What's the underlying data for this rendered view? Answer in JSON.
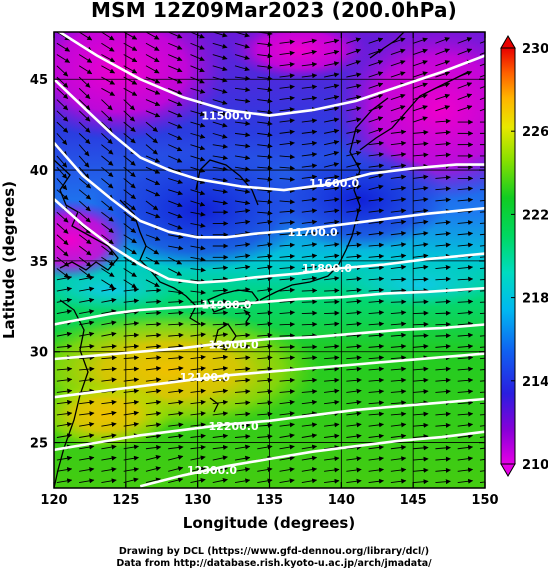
{
  "title": "MSM 12Z09Mar2023 (200.0hPa)",
  "credit": {
    "line1": "Drawing by DCL (https://www.gfd-dennou.org/library/dcl/)",
    "line2": "Data from http://database.rish.kyoto-u.ac.jp/arch/jmadata/"
  },
  "axes": {
    "x_title": "Longitude (degrees)",
    "y_title": "Latitude  (degrees)",
    "x_range": [
      120,
      150
    ],
    "y_range": [
      22.5,
      47.6
    ],
    "x_ticks": [
      120,
      125,
      130,
      135,
      140,
      145,
      150
    ],
    "y_ticks": [
      25,
      30,
      35,
      40,
      45
    ],
    "x_tick_labels": [
      "120",
      "125",
      "130",
      "135",
      "140",
      "145",
      "150"
    ],
    "y_tick_labels": [
      "25",
      "30",
      "35",
      "40",
      "45"
    ]
  },
  "colorbar": {
    "range": [
      210,
      230
    ],
    "tick_labels": [
      "210",
      "214",
      "218",
      "222",
      "226",
      "230"
    ],
    "colors": [
      "#e600e6",
      "#7000d8",
      "#1a1ae0",
      "#0a70f0",
      "#00d0e0",
      "#00d890",
      "#00cc33",
      "#66dd00",
      "#d8e800",
      "#ffcc00",
      "#ff8800",
      "#ff3300",
      "#e80000"
    ]
  },
  "contours": [
    {
      "label": "11500.0",
      "value": 11500,
      "points": [
        [
          120,
          47.8
        ],
        [
          123,
          46.3
        ],
        [
          126,
          45.0
        ],
        [
          129,
          44.0
        ],
        [
          132,
          43.3
        ],
        [
          135,
          43.0
        ],
        [
          138,
          43.3
        ],
        [
          141,
          43.8
        ],
        [
          144,
          44.6
        ],
        [
          147,
          45.4
        ],
        [
          150,
          46.3
        ]
      ]
    },
    {
      "label": "11600.0",
      "value": 11600,
      "points": [
        [
          120,
          45.0
        ],
        [
          122,
          43.5
        ],
        [
          124,
          42.0
        ],
        [
          126,
          40.7
        ],
        [
          128,
          40.0
        ],
        [
          130,
          39.5
        ],
        [
          133,
          39.1
        ],
        [
          136,
          38.9
        ],
        [
          139,
          39.2
        ],
        [
          142,
          39.8
        ],
        [
          145,
          40.1
        ],
        [
          148,
          40.3
        ],
        [
          150,
          40.3
        ]
      ]
    },
    {
      "label": "11700.0",
      "value": 11700,
      "points": [
        [
          120,
          41.5
        ],
        [
          122,
          39.7
        ],
        [
          124,
          38.4
        ],
        [
          126,
          37.2
        ],
        [
          128,
          36.6
        ],
        [
          130,
          36.3
        ],
        [
          132,
          36.3
        ],
        [
          134,
          36.5
        ],
        [
          137,
          36.7
        ],
        [
          140,
          37.0
        ],
        [
          143,
          37.3
        ],
        [
          146,
          37.6
        ],
        [
          150,
          37.9
        ]
      ]
    },
    {
      "label": "11800.0",
      "value": 11800,
      "points": [
        [
          120,
          38.4
        ],
        [
          122,
          37.0
        ],
        [
          124,
          35.8
        ],
        [
          126,
          34.8
        ],
        [
          128,
          34.0
        ],
        [
          130,
          33.8
        ],
        [
          132,
          33.9
        ],
        [
          134,
          34.1
        ],
        [
          137,
          34.3
        ],
        [
          140,
          34.6
        ],
        [
          143,
          34.8
        ],
        [
          146,
          35.1
        ],
        [
          150,
          35.4
        ]
      ]
    },
    {
      "label": "11900.0",
      "value": 11900,
      "points": [
        [
          120,
          31.5
        ],
        [
          122,
          31.8
        ],
        [
          124,
          32.1
        ],
        [
          126,
          32.3
        ],
        [
          128,
          32.4
        ],
        [
          130,
          32.5
        ],
        [
          132,
          32.6
        ],
        [
          134,
          32.7
        ],
        [
          137,
          32.9
        ],
        [
          140,
          33.0
        ],
        [
          143,
          33.2
        ],
        [
          146,
          33.3
        ],
        [
          150,
          33.5
        ]
      ]
    },
    {
      "label": "12000.0",
      "value": 12000,
      "points": [
        [
          120,
          29.6
        ],
        [
          123,
          29.8
        ],
        [
          126,
          30.0
        ],
        [
          129,
          30.2
        ],
        [
          132,
          30.5
        ],
        [
          135,
          30.7
        ],
        [
          138,
          30.8
        ],
        [
          141,
          31.0
        ],
        [
          144,
          31.2
        ],
        [
          147,
          31.3
        ],
        [
          150,
          31.5
        ]
      ]
    },
    {
      "label": "12100.0",
      "value": 12100,
      "points": [
        [
          120,
          27.5
        ],
        [
          123,
          27.8
        ],
        [
          126,
          28.1
        ],
        [
          129,
          28.4
        ],
        [
          132,
          28.7
        ],
        [
          135,
          28.9
        ],
        [
          138,
          29.1
        ],
        [
          141,
          29.3
        ],
        [
          144,
          29.5
        ],
        [
          147,
          29.7
        ],
        [
          150,
          29.9
        ]
      ]
    },
    {
      "label": "12200.0",
      "value": 12200,
      "points": [
        [
          120,
          24.6
        ],
        [
          123,
          25.0
        ],
        [
          126,
          25.4
        ],
        [
          129,
          25.7
        ],
        [
          132,
          26.0
        ],
        [
          135,
          26.2
        ],
        [
          138,
          26.5
        ],
        [
          141,
          26.8
        ],
        [
          144,
          27.0
        ],
        [
          147,
          27.2
        ],
        [
          150,
          27.4
        ]
      ]
    },
    {
      "label": "12300.0",
      "value": 12300,
      "points": [
        [
          126,
          22.6
        ],
        [
          129,
          23.2
        ],
        [
          132,
          23.7
        ],
        [
          135,
          24.1
        ],
        [
          138,
          24.5
        ],
        [
          141,
          24.8
        ],
        [
          144,
          25.1
        ],
        [
          147,
          25.3
        ],
        [
          150,
          25.6
        ]
      ]
    }
  ],
  "contour_label_positions": [
    {
      "text": "11500.0",
      "lon": 132.0,
      "lat": 43.0
    },
    {
      "text": "11600.0",
      "lon": 139.5,
      "lat": 39.3
    },
    {
      "text": "11700.0",
      "lon": 138.0,
      "lat": 36.6
    },
    {
      "text": "11800.0",
      "lon": 139.0,
      "lat": 34.6
    },
    {
      "text": "11900.0",
      "lon": 132.0,
      "lat": 32.6
    },
    {
      "text": "12000.0",
      "lon": 132.5,
      "lat": 30.4
    },
    {
      "text": "12100.0",
      "lon": 130.5,
      "lat": 28.6
    },
    {
      "text": "12200.0",
      "lon": 132.5,
      "lat": 25.9
    },
    {
      "text": "12300.0",
      "lon": 131.0,
      "lat": 23.5
    }
  ]
}
